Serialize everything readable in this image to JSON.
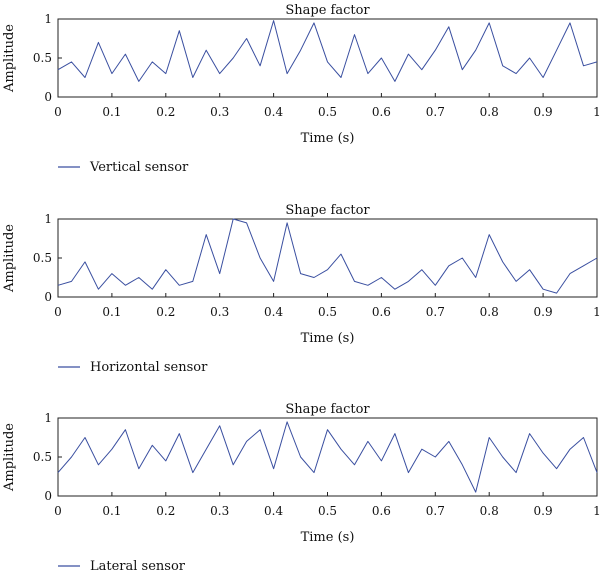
{
  "chart_data": [
    {
      "type": "line",
      "title": "Shape factor",
      "xlabel": "Time (s)",
      "ylabel": "Amplitude",
      "xlim": [
        0,
        1
      ],
      "ylim": [
        0,
        1
      ],
      "x_ticks": [
        "0",
        "0.1",
        "0.2",
        "0.3",
        "0.4",
        "0.5",
        "0.6",
        "0.7",
        "0.8",
        "0.9",
        "1"
      ],
      "y_ticks": [
        "0",
        "0.5",
        "1"
      ],
      "grid": false,
      "legend_position": "bottom-left",
      "series": [
        {
          "name": "Vertical sensor",
          "color": "#3a4fa0",
          "x": [
            0,
            0.025,
            0.05,
            0.075,
            0.1,
            0.125,
            0.15,
            0.175,
            0.2,
            0.225,
            0.25,
            0.275,
            0.3,
            0.325,
            0.35,
            0.375,
            0.4,
            0.425,
            0.45,
            0.475,
            0.5,
            0.525,
            0.55,
            0.575,
            0.6,
            0.625,
            0.65,
            0.675,
            0.7,
            0.725,
            0.75,
            0.775,
            0.8,
            0.825,
            0.85,
            0.875,
            0.9,
            0.925,
            0.95,
            0.975,
            1
          ],
          "y": [
            0.35,
            0.45,
            0.25,
            0.7,
            0.3,
            0.55,
            0.2,
            0.45,
            0.3,
            0.85,
            0.25,
            0.6,
            0.3,
            0.5,
            0.75,
            0.4,
            0.98,
            0.3,
            0.6,
            0.95,
            0.45,
            0.25,
            0.8,
            0.3,
            0.5,
            0.2,
            0.55,
            0.35,
            0.6,
            0.9,
            0.35,
            0.6,
            0.95,
            0.4,
            0.3,
            0.5,
            0.25,
            0.6,
            0.95,
            0.4,
            0.45
          ]
        }
      ]
    },
    {
      "type": "line",
      "title": "Shape factor",
      "xlabel": "Time (s)",
      "ylabel": "Amplitude",
      "xlim": [
        0,
        1
      ],
      "ylim": [
        0,
        1
      ],
      "x_ticks": [
        "0",
        "0.1",
        "0.2",
        "0.3",
        "0.4",
        "0.5",
        "0.6",
        "0.7",
        "0.8",
        "0.9",
        "1"
      ],
      "y_ticks": [
        "0",
        "0.5",
        "1"
      ],
      "grid": false,
      "legend_position": "bottom-left",
      "series": [
        {
          "name": "Horizontal sensor",
          "color": "#3a4fa0",
          "x": [
            0,
            0.025,
            0.05,
            0.075,
            0.1,
            0.125,
            0.15,
            0.175,
            0.2,
            0.225,
            0.25,
            0.275,
            0.3,
            0.325,
            0.35,
            0.375,
            0.4,
            0.425,
            0.45,
            0.475,
            0.5,
            0.525,
            0.55,
            0.575,
            0.6,
            0.625,
            0.65,
            0.675,
            0.7,
            0.725,
            0.75,
            0.775,
            0.8,
            0.825,
            0.85,
            0.875,
            0.9,
            0.925,
            0.95,
            0.975,
            1
          ],
          "y": [
            0.15,
            0.2,
            0.45,
            0.1,
            0.3,
            0.15,
            0.25,
            0.1,
            0.35,
            0.15,
            0.2,
            0.8,
            0.3,
            1.0,
            0.95,
            0.5,
            0.2,
            0.95,
            0.3,
            0.25,
            0.35,
            0.55,
            0.2,
            0.15,
            0.25,
            0.1,
            0.2,
            0.35,
            0.15,
            0.4,
            0.5,
            0.25,
            0.8,
            0.45,
            0.2,
            0.35,
            0.1,
            0.05,
            0.3,
            0.4,
            0.5
          ]
        }
      ]
    },
    {
      "type": "line",
      "title": "Shape factor",
      "xlabel": "Time (s)",
      "ylabel": "Amplitude",
      "xlim": [
        0,
        1
      ],
      "ylim": [
        0,
        1
      ],
      "x_ticks": [
        "0",
        "0.1",
        "0.2",
        "0.3",
        "0.4",
        "0.5",
        "0.6",
        "0.7",
        "0.8",
        "0.9",
        "1"
      ],
      "y_ticks": [
        "0",
        "0.5",
        "1"
      ],
      "grid": false,
      "legend_position": "bottom-left",
      "series": [
        {
          "name": "Lateral sensor",
          "color": "#3a4fa0",
          "x": [
            0,
            0.025,
            0.05,
            0.075,
            0.1,
            0.125,
            0.15,
            0.175,
            0.2,
            0.225,
            0.25,
            0.275,
            0.3,
            0.325,
            0.35,
            0.375,
            0.4,
            0.425,
            0.45,
            0.475,
            0.5,
            0.525,
            0.55,
            0.575,
            0.6,
            0.625,
            0.65,
            0.675,
            0.7,
            0.725,
            0.75,
            0.775,
            0.8,
            0.825,
            0.85,
            0.875,
            0.9,
            0.925,
            0.95,
            0.975,
            1
          ],
          "y": [
            0.3,
            0.5,
            0.75,
            0.4,
            0.6,
            0.85,
            0.35,
            0.65,
            0.45,
            0.8,
            0.3,
            0.6,
            0.9,
            0.4,
            0.7,
            0.85,
            0.35,
            0.95,
            0.5,
            0.3,
            0.85,
            0.6,
            0.4,
            0.7,
            0.45,
            0.8,
            0.3,
            0.6,
            0.5,
            0.7,
            0.4,
            0.05,
            0.75,
            0.5,
            0.3,
            0.8,
            0.55,
            0.35,
            0.6,
            0.75,
            0.3
          ]
        }
      ]
    }
  ]
}
